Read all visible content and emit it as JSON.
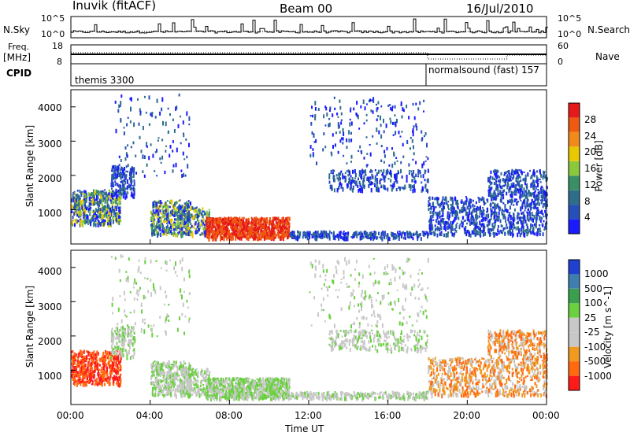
{
  "header": {
    "station": "Inuvik",
    "mode": "(fitACF)",
    "beam": "Beam 00",
    "date": "16/Jul/2010"
  },
  "left_labels": {
    "nsky": "N.Sky",
    "freq": "Freq.",
    "mhz": "[MHz]",
    "cpid": "CPID"
  },
  "right_labels": {
    "nsearch": "N.Search",
    "nave": "Nave"
  },
  "cpid_segments": [
    {
      "label": "themis 3300"
    },
    {
      "label": "normalsound (fast) 157"
    }
  ],
  "colors": {
    "power_scale": [
      "#1a1aff",
      "#2650b8",
      "#2e6e8a",
      "#3a8f66",
      "#8cc83c",
      "#e8c800",
      "#f08a1a",
      "#ee5a10",
      "#e61a1a"
    ],
    "velocity_scale": [
      "#ff1a1a",
      "#ff6a10",
      "#f09a20",
      "#c8c8c8",
      "#c8c8c8",
      "#6ad040",
      "#3aa050",
      "#3f7fb0",
      "#2040d0"
    ]
  },
  "chart_data": [
    {
      "type": "line",
      "title": "N.Sky / N.Search",
      "x_axis": "Time UT",
      "y_ticks": [
        "10^5",
        "10^0"
      ],
      "right_ticks": [
        "10^5",
        "10^0"
      ],
      "series": [
        {
          "name": "N.Sky"
        },
        {
          "name": "N.Search"
        }
      ]
    },
    {
      "type": "line",
      "title": "Freq. / Nave",
      "left_ticks": [
        "18",
        "8"
      ],
      "right_ticks": [
        "60",
        "0"
      ],
      "series": [
        {
          "name": "Freq. [MHz]",
          "x": [
            "00:00",
            "18:00",
            "18:00",
            "22:00",
            "22:00",
            "24:00"
          ],
          "values": [
            11.0,
            11.0,
            11.0,
            11.0,
            11.0,
            11.0
          ]
        },
        {
          "name": "Nave",
          "x": [
            "00:00",
            "18:00",
            "18:00",
            "22:00",
            "22:00",
            "24:00"
          ],
          "values": [
            38,
            38,
            12,
            12,
            20,
            20
          ]
        }
      ]
    },
    {
      "type": "heatmap",
      "ylabel": "Slant Range [km]",
      "y_ticks": [
        "1000",
        "2000",
        "3000",
        "4000"
      ],
      "colorbar_label": "Power [dB]",
      "colorbar_ticks": [
        "4",
        "8",
        "12",
        "16",
        "20",
        "24",
        "28"
      ]
    },
    {
      "type": "heatmap",
      "ylabel": "Slant Range [km]",
      "y_ticks": [
        "1000",
        "2000",
        "3000",
        "4000"
      ],
      "colorbar_label": "Velocity [m s^-1]",
      "colorbar_ticks": [
        "-1000",
        "-500",
        "-100",
        "-25",
        "25",
        "100",
        "500",
        "1000"
      ],
      "xlabel": "Time UT",
      "x_ticks": [
        "00:00",
        "04:00",
        "08:00",
        "12:00",
        "16:00",
        "20:00",
        "00:00"
      ]
    }
  ]
}
